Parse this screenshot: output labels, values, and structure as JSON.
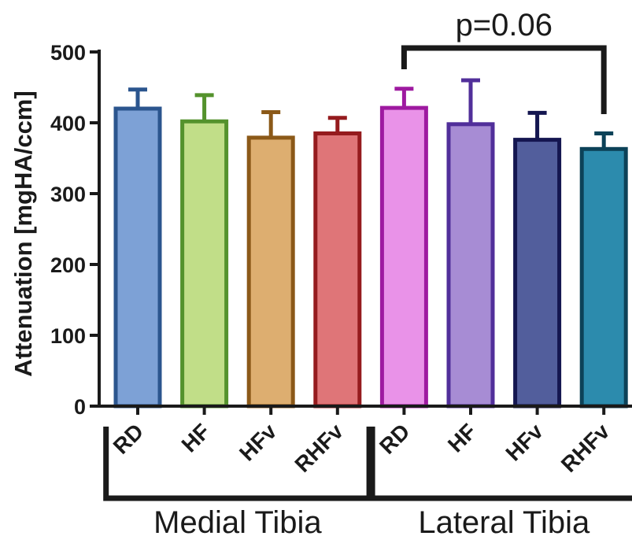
{
  "chart_data": {
    "type": "bar",
    "ylabel": "Attenuation [mgHA/ccm]",
    "ylim": [
      0,
      500
    ],
    "yticks": [
      "0",
      "100",
      "200",
      "300",
      "400",
      "500"
    ],
    "categories": [
      "RD",
      "HF",
      "HFv",
      "RHFv",
      "RD",
      "HF",
      "HFv",
      "RHFv"
    ],
    "values": [
      420,
      402,
      379,
      385,
      421,
      398,
      376,
      363
    ],
    "errors": [
      27,
      37,
      36,
      22,
      27,
      62,
      38,
      22
    ],
    "fill_colors": [
      "#7da1d6",
      "#c1de88",
      "#ddae70",
      "#df7578",
      "#e992e8",
      "#a78cd4",
      "#525e9c",
      "#2c8bad"
    ],
    "edge_colors": [
      "#2b558e",
      "#54922c",
      "#8b5918",
      "#951b1e",
      "#9e1aa0",
      "#512f9a",
      "#141650",
      "#0c4258"
    ],
    "groups": [
      {
        "label": "Medial  Tibia",
        "categories": [
          0,
          1,
          2,
          3
        ]
      },
      {
        "label": "Lateral  Tibia",
        "categories": [
          4,
          5,
          6,
          7
        ]
      }
    ],
    "annotation": {
      "text": "p=0.06",
      "from_category": 4,
      "to_category": 7
    },
    "grid": false,
    "legend": "none"
  }
}
